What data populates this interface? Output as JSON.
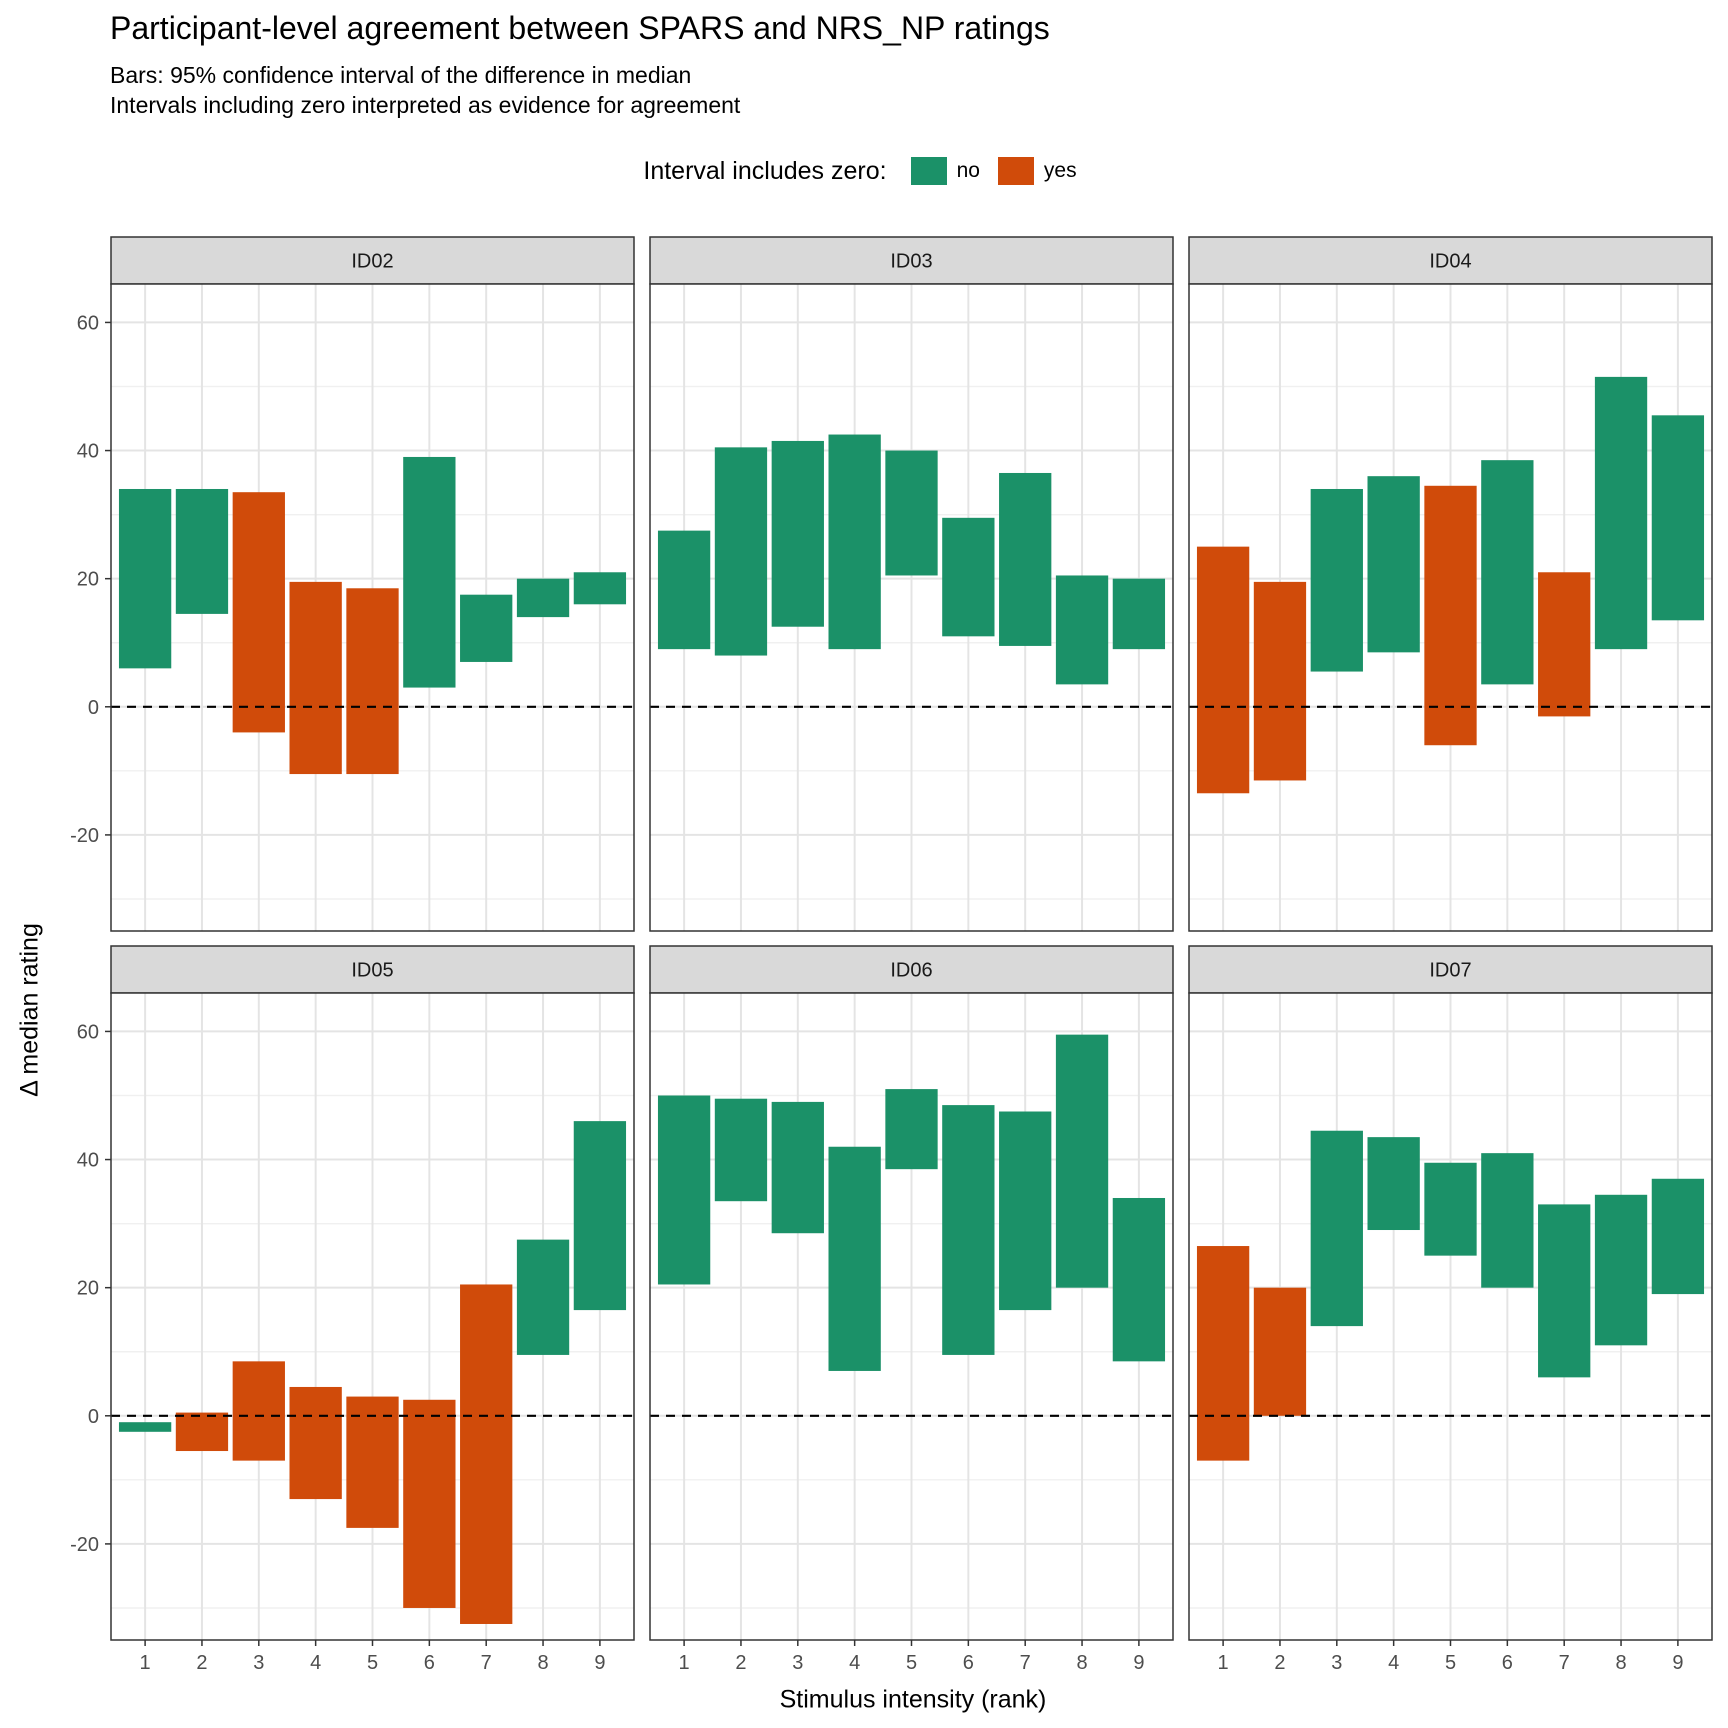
{
  "chart_data": {
    "type": "bar",
    "subtype": "floating-range-bar (facetted)",
    "title": "Participant-level agreement between SPARS and NRS_NP ratings",
    "subtitle": [
      "Bars: 95% confidence interval of the difference in median",
      "Intervals including zero interpreted as evidence for agreement"
    ],
    "xlabel": "Stimulus intensity (rank)",
    "ylabel": "Δ median rating",
    "x": [
      1,
      2,
      3,
      4,
      5,
      6,
      7,
      8,
      9
    ],
    "ylim": [
      -35,
      66
    ],
    "yticks": [
      -20,
      0,
      20,
      40,
      60
    ],
    "reference_line": 0,
    "grid": true,
    "legend": {
      "title": "Interval includes zero:",
      "placement": "top",
      "entries": [
        {
          "key": "no",
          "label": "no",
          "color": "#1B9168"
        },
        {
          "key": "yes",
          "label": "yes",
          "color": "#D04B0A"
        }
      ]
    },
    "panels": [
      {
        "label": "ID02",
        "low": [
          6,
          14.5,
          -4,
          -10.5,
          -10.5,
          3,
          7,
          14,
          16
        ],
        "high": [
          34,
          34,
          33.5,
          19.5,
          18.5,
          39,
          17.5,
          20,
          21
        ],
        "includes_zero": [
          "no",
          "no",
          "yes",
          "yes",
          "yes",
          "no",
          "no",
          "no",
          "no"
        ]
      },
      {
        "label": "ID03",
        "low": [
          9,
          8,
          12.5,
          9,
          20.5,
          11,
          9.5,
          3.5,
          9
        ],
        "high": [
          27.5,
          40.5,
          41.5,
          42.5,
          40,
          29.5,
          36.5,
          20.5,
          20
        ],
        "includes_zero": [
          "no",
          "no",
          "no",
          "no",
          "no",
          "no",
          "no",
          "no",
          "no"
        ]
      },
      {
        "label": "ID04",
        "low": [
          -13.5,
          -11.5,
          5.5,
          8.5,
          -6,
          3.5,
          -1.5,
          9,
          13.5
        ],
        "high": [
          25,
          19.5,
          34,
          36,
          34.5,
          38.5,
          21,
          51.5,
          45.5
        ],
        "includes_zero": [
          "yes",
          "yes",
          "no",
          "no",
          "yes",
          "no",
          "yes",
          "no",
          "no"
        ]
      },
      {
        "label": "ID05",
        "low": [
          -2.5,
          -5.5,
          -7,
          -13,
          -17.5,
          -30,
          -32.5,
          9.5,
          16.5
        ],
        "high": [
          -1,
          0.5,
          8.5,
          4.5,
          3,
          2.5,
          20.5,
          27.5,
          46
        ],
        "includes_zero": [
          "no",
          "yes",
          "yes",
          "yes",
          "yes",
          "yes",
          "yes",
          "no",
          "no"
        ]
      },
      {
        "label": "ID06",
        "low": [
          20.5,
          33.5,
          28.5,
          7,
          38.5,
          9.5,
          16.5,
          20,
          8.5
        ],
        "high": [
          50,
          49.5,
          49,
          42,
          51,
          48.5,
          47.5,
          59.5,
          34
        ],
        "includes_zero": [
          "no",
          "no",
          "no",
          "no",
          "no",
          "no",
          "no",
          "no",
          "no"
        ]
      },
      {
        "label": "ID07",
        "low": [
          -7,
          0,
          14,
          29,
          25,
          20,
          6,
          11,
          19
        ],
        "high": [
          26.5,
          20,
          44.5,
          43.5,
          39.5,
          41,
          33,
          34.5,
          37
        ],
        "includes_zero": [
          "yes",
          "yes",
          "no",
          "no",
          "no",
          "no",
          "no",
          "no",
          "no"
        ]
      }
    ]
  }
}
